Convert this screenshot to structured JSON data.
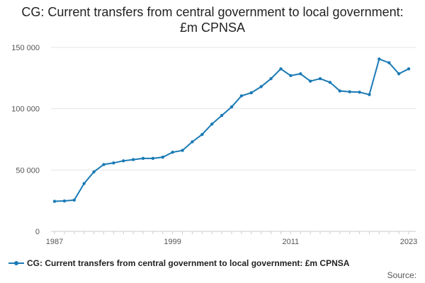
{
  "chart_data": {
    "type": "line",
    "title": "CG: Current transfers from central government to local government: £m CPNSA",
    "x": [
      1987,
      1988,
      1989,
      1990,
      1991,
      1992,
      1993,
      1994,
      1995,
      1996,
      1997,
      1998,
      1999,
      2000,
      2001,
      2002,
      2003,
      2004,
      2005,
      2006,
      2007,
      2008,
      2009,
      2010,
      2011,
      2012,
      2013,
      2014,
      2015,
      2016,
      2017,
      2018,
      2019,
      2020,
      2021,
      2022,
      2023
    ],
    "series": [
      {
        "name": "CG: Current transfers from central government to local government: £m CPNSA",
        "color": "#1a7ab5",
        "values": [
          24500,
          24800,
          25500,
          39000,
          48500,
          54500,
          55800,
          57500,
          58500,
          59500,
          59500,
          60500,
          64500,
          66000,
          73000,
          79000,
          87500,
          94500,
          101500,
          110500,
          113000,
          118000,
          124500,
          132500,
          127000,
          128500,
          122500,
          124500,
          121500,
          114500,
          113800,
          113500,
          111500,
          140500,
          137500,
          128500,
          132500
        ]
      }
    ],
    "xticks": [
      "1987",
      "1999",
      "2011",
      "2023"
    ],
    "yticks": [
      0,
      50000,
      100000,
      150000
    ],
    "ytick_labels": [
      "0",
      "50 000",
      "100 000",
      "150 000"
    ],
    "ylim": [
      0,
      150000
    ],
    "xlim": [
      1987,
      2023
    ],
    "legend": "bottom-left",
    "source_label": "Source:"
  }
}
